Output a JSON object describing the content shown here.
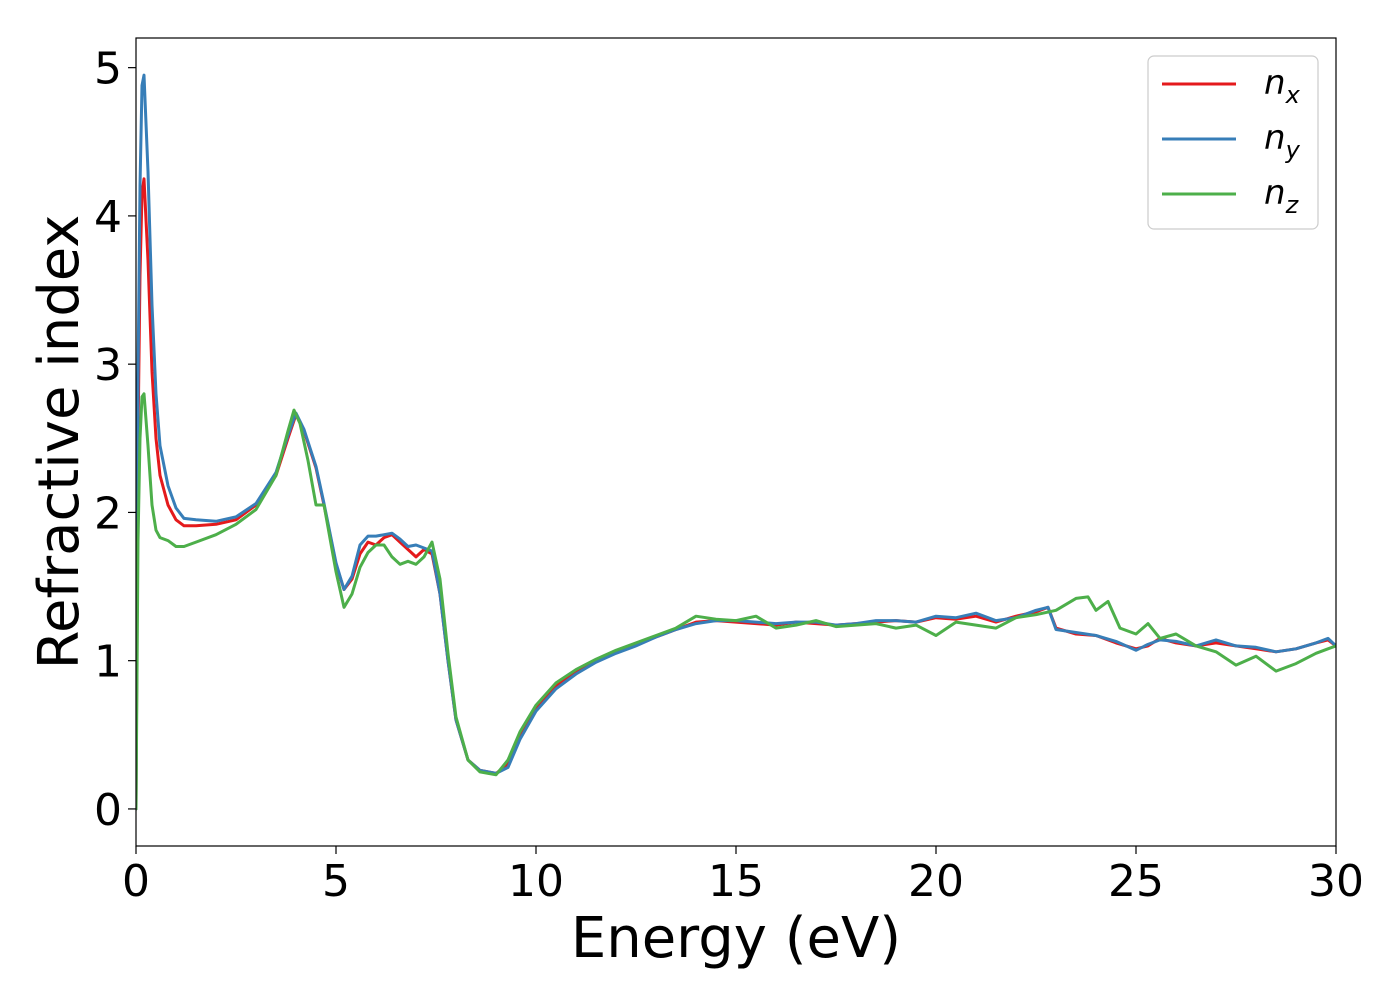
{
  "chart_data": {
    "type": "line",
    "title": "",
    "xlabel": "Energy (eV)",
    "ylabel": "Refractive index",
    "xlim": [
      0,
      30
    ],
    "ylim": [
      -0.25,
      5.2
    ],
    "xticks": [
      0,
      5,
      10,
      15,
      20,
      25,
      30
    ],
    "yticks": [
      0,
      1,
      2,
      3,
      4,
      5
    ],
    "grid": false,
    "legend_position": "top-right",
    "series": [
      {
        "name": "n",
        "subscript": "x",
        "color": "#e41a1c",
        "x": [
          0,
          0.05,
          0.1,
          0.15,
          0.2,
          0.3,
          0.4,
          0.5,
          0.6,
          0.8,
          1.0,
          1.2,
          1.5,
          2.0,
          2.5,
          3.0,
          3.5,
          3.8,
          4.0,
          4.2,
          4.5,
          4.7,
          5.0,
          5.2,
          5.4,
          5.6,
          5.8,
          6.0,
          6.2,
          6.4,
          6.6,
          6.8,
          7.0,
          7.2,
          7.4,
          7.6,
          7.8,
          8.0,
          8.3,
          8.6,
          9.0,
          9.3,
          9.6,
          10.0,
          10.5,
          11.0,
          11.5,
          12.0,
          12.5,
          13.0,
          13.5,
          14.0,
          14.5,
          15.0,
          15.5,
          16.0,
          16.5,
          17.0,
          17.5,
          18.0,
          18.5,
          19.0,
          19.5,
          20.0,
          20.5,
          21.0,
          21.5,
          22.0,
          22.5,
          22.8,
          23.0,
          23.5,
          24.0,
          24.5,
          25.0,
          25.3,
          25.6,
          26.0,
          26.5,
          27.0,
          27.5,
          28.0,
          28.5,
          29.0,
          29.5,
          29.8,
          30.0
        ],
        "y": [
          0.0,
          2.5,
          3.6,
          4.15,
          4.25,
          3.7,
          2.95,
          2.5,
          2.25,
          2.05,
          1.95,
          1.91,
          1.91,
          1.92,
          1.95,
          2.05,
          2.25,
          2.5,
          2.66,
          2.55,
          2.3,
          2.05,
          1.65,
          1.48,
          1.55,
          1.72,
          1.8,
          1.78,
          1.83,
          1.85,
          1.8,
          1.75,
          1.7,
          1.75,
          1.72,
          1.45,
          1.0,
          0.6,
          0.33,
          0.26,
          0.24,
          0.3,
          0.5,
          0.68,
          0.83,
          0.93,
          1.0,
          1.06,
          1.11,
          1.16,
          1.21,
          1.26,
          1.27,
          1.26,
          1.25,
          1.24,
          1.26,
          1.25,
          1.24,
          1.25,
          1.26,
          1.27,
          1.26,
          1.29,
          1.28,
          1.3,
          1.26,
          1.3,
          1.33,
          1.36,
          1.22,
          1.18,
          1.17,
          1.12,
          1.08,
          1.1,
          1.15,
          1.12,
          1.1,
          1.12,
          1.1,
          1.08,
          1.06,
          1.08,
          1.12,
          1.14,
          1.1
        ]
      },
      {
        "name": "n",
        "subscript": "y",
        "color": "#377eb8",
        "x": [
          0,
          0.05,
          0.1,
          0.15,
          0.2,
          0.3,
          0.4,
          0.5,
          0.6,
          0.8,
          1.0,
          1.2,
          1.5,
          2.0,
          2.5,
          3.0,
          3.5,
          3.8,
          4.0,
          4.2,
          4.5,
          4.7,
          5.0,
          5.2,
          5.4,
          5.6,
          5.8,
          6.0,
          6.2,
          6.4,
          6.6,
          6.8,
          7.0,
          7.2,
          7.4,
          7.6,
          7.8,
          8.0,
          8.3,
          8.6,
          9.0,
          9.3,
          9.6,
          10.0,
          10.5,
          11.0,
          11.5,
          12.0,
          12.5,
          13.0,
          13.5,
          14.0,
          14.5,
          15.0,
          15.5,
          16.0,
          16.5,
          17.0,
          17.5,
          18.0,
          18.5,
          19.0,
          19.5,
          20.0,
          20.5,
          21.0,
          21.5,
          22.0,
          22.5,
          22.8,
          23.0,
          23.5,
          24.0,
          24.5,
          25.0,
          25.3,
          25.6,
          26.0,
          26.5,
          27.0,
          27.5,
          28.0,
          28.5,
          29.0,
          29.5,
          29.8,
          30.0
        ],
        "y": [
          0.0,
          2.9,
          4.2,
          4.88,
          4.95,
          4.3,
          3.4,
          2.8,
          2.45,
          2.18,
          2.03,
          1.96,
          1.95,
          1.94,
          1.97,
          2.06,
          2.27,
          2.52,
          2.67,
          2.56,
          2.31,
          2.06,
          1.66,
          1.48,
          1.57,
          1.78,
          1.84,
          1.84,
          1.85,
          1.86,
          1.82,
          1.77,
          1.78,
          1.76,
          1.74,
          1.45,
          1.0,
          0.6,
          0.33,
          0.26,
          0.24,
          0.28,
          0.47,
          0.66,
          0.81,
          0.91,
          0.99,
          1.05,
          1.1,
          1.16,
          1.21,
          1.25,
          1.27,
          1.27,
          1.26,
          1.25,
          1.26,
          1.26,
          1.24,
          1.25,
          1.27,
          1.27,
          1.26,
          1.3,
          1.29,
          1.32,
          1.27,
          1.29,
          1.34,
          1.36,
          1.21,
          1.19,
          1.17,
          1.13,
          1.07,
          1.11,
          1.14,
          1.13,
          1.1,
          1.14,
          1.1,
          1.09,
          1.06,
          1.08,
          1.12,
          1.15,
          1.1
        ]
      },
      {
        "name": "n",
        "subscript": "z",
        "color": "#4daf4a",
        "x": [
          0,
          0.05,
          0.1,
          0.15,
          0.2,
          0.3,
          0.4,
          0.5,
          0.6,
          0.8,
          1.0,
          1.2,
          1.5,
          2.0,
          2.5,
          3.0,
          3.5,
          3.8,
          3.95,
          4.1,
          4.3,
          4.5,
          4.7,
          5.0,
          5.2,
          5.4,
          5.6,
          5.8,
          6.0,
          6.2,
          6.4,
          6.6,
          6.8,
          7.0,
          7.2,
          7.4,
          7.6,
          7.8,
          8.0,
          8.3,
          8.6,
          9.0,
          9.3,
          9.6,
          10.0,
          10.5,
          11.0,
          11.5,
          12.0,
          12.5,
          13.0,
          13.5,
          14.0,
          14.5,
          15.0,
          15.5,
          16.0,
          16.5,
          17.0,
          17.5,
          18.0,
          18.5,
          19.0,
          19.5,
          20.0,
          20.5,
          21.0,
          21.5,
          22.0,
          22.5,
          23.0,
          23.5,
          23.8,
          24.0,
          24.3,
          24.6,
          25.0,
          25.3,
          25.6,
          26.0,
          26.5,
          27.0,
          27.5,
          28.0,
          28.5,
          29.0,
          29.5,
          29.8,
          30.0
        ],
        "y": [
          0.0,
          1.8,
          2.5,
          2.78,
          2.8,
          2.45,
          2.05,
          1.88,
          1.83,
          1.81,
          1.77,
          1.77,
          1.8,
          1.85,
          1.92,
          2.02,
          2.25,
          2.55,
          2.69,
          2.6,
          2.35,
          2.05,
          2.05,
          1.6,
          1.36,
          1.45,
          1.63,
          1.73,
          1.78,
          1.78,
          1.7,
          1.65,
          1.67,
          1.65,
          1.7,
          1.8,
          1.55,
          1.05,
          0.62,
          0.33,
          0.25,
          0.23,
          0.33,
          0.52,
          0.7,
          0.85,
          0.94,
          1.01,
          1.07,
          1.12,
          1.17,
          1.22,
          1.3,
          1.28,
          1.27,
          1.3,
          1.22,
          1.24,
          1.27,
          1.23,
          1.24,
          1.25,
          1.22,
          1.24,
          1.17,
          1.26,
          1.24,
          1.22,
          1.29,
          1.31,
          1.34,
          1.42,
          1.43,
          1.34,
          1.4,
          1.22,
          1.18,
          1.25,
          1.15,
          1.18,
          1.1,
          1.06,
          0.97,
          1.03,
          0.93,
          0.98,
          1.05,
          1.08,
          1.1
        ]
      }
    ]
  }
}
